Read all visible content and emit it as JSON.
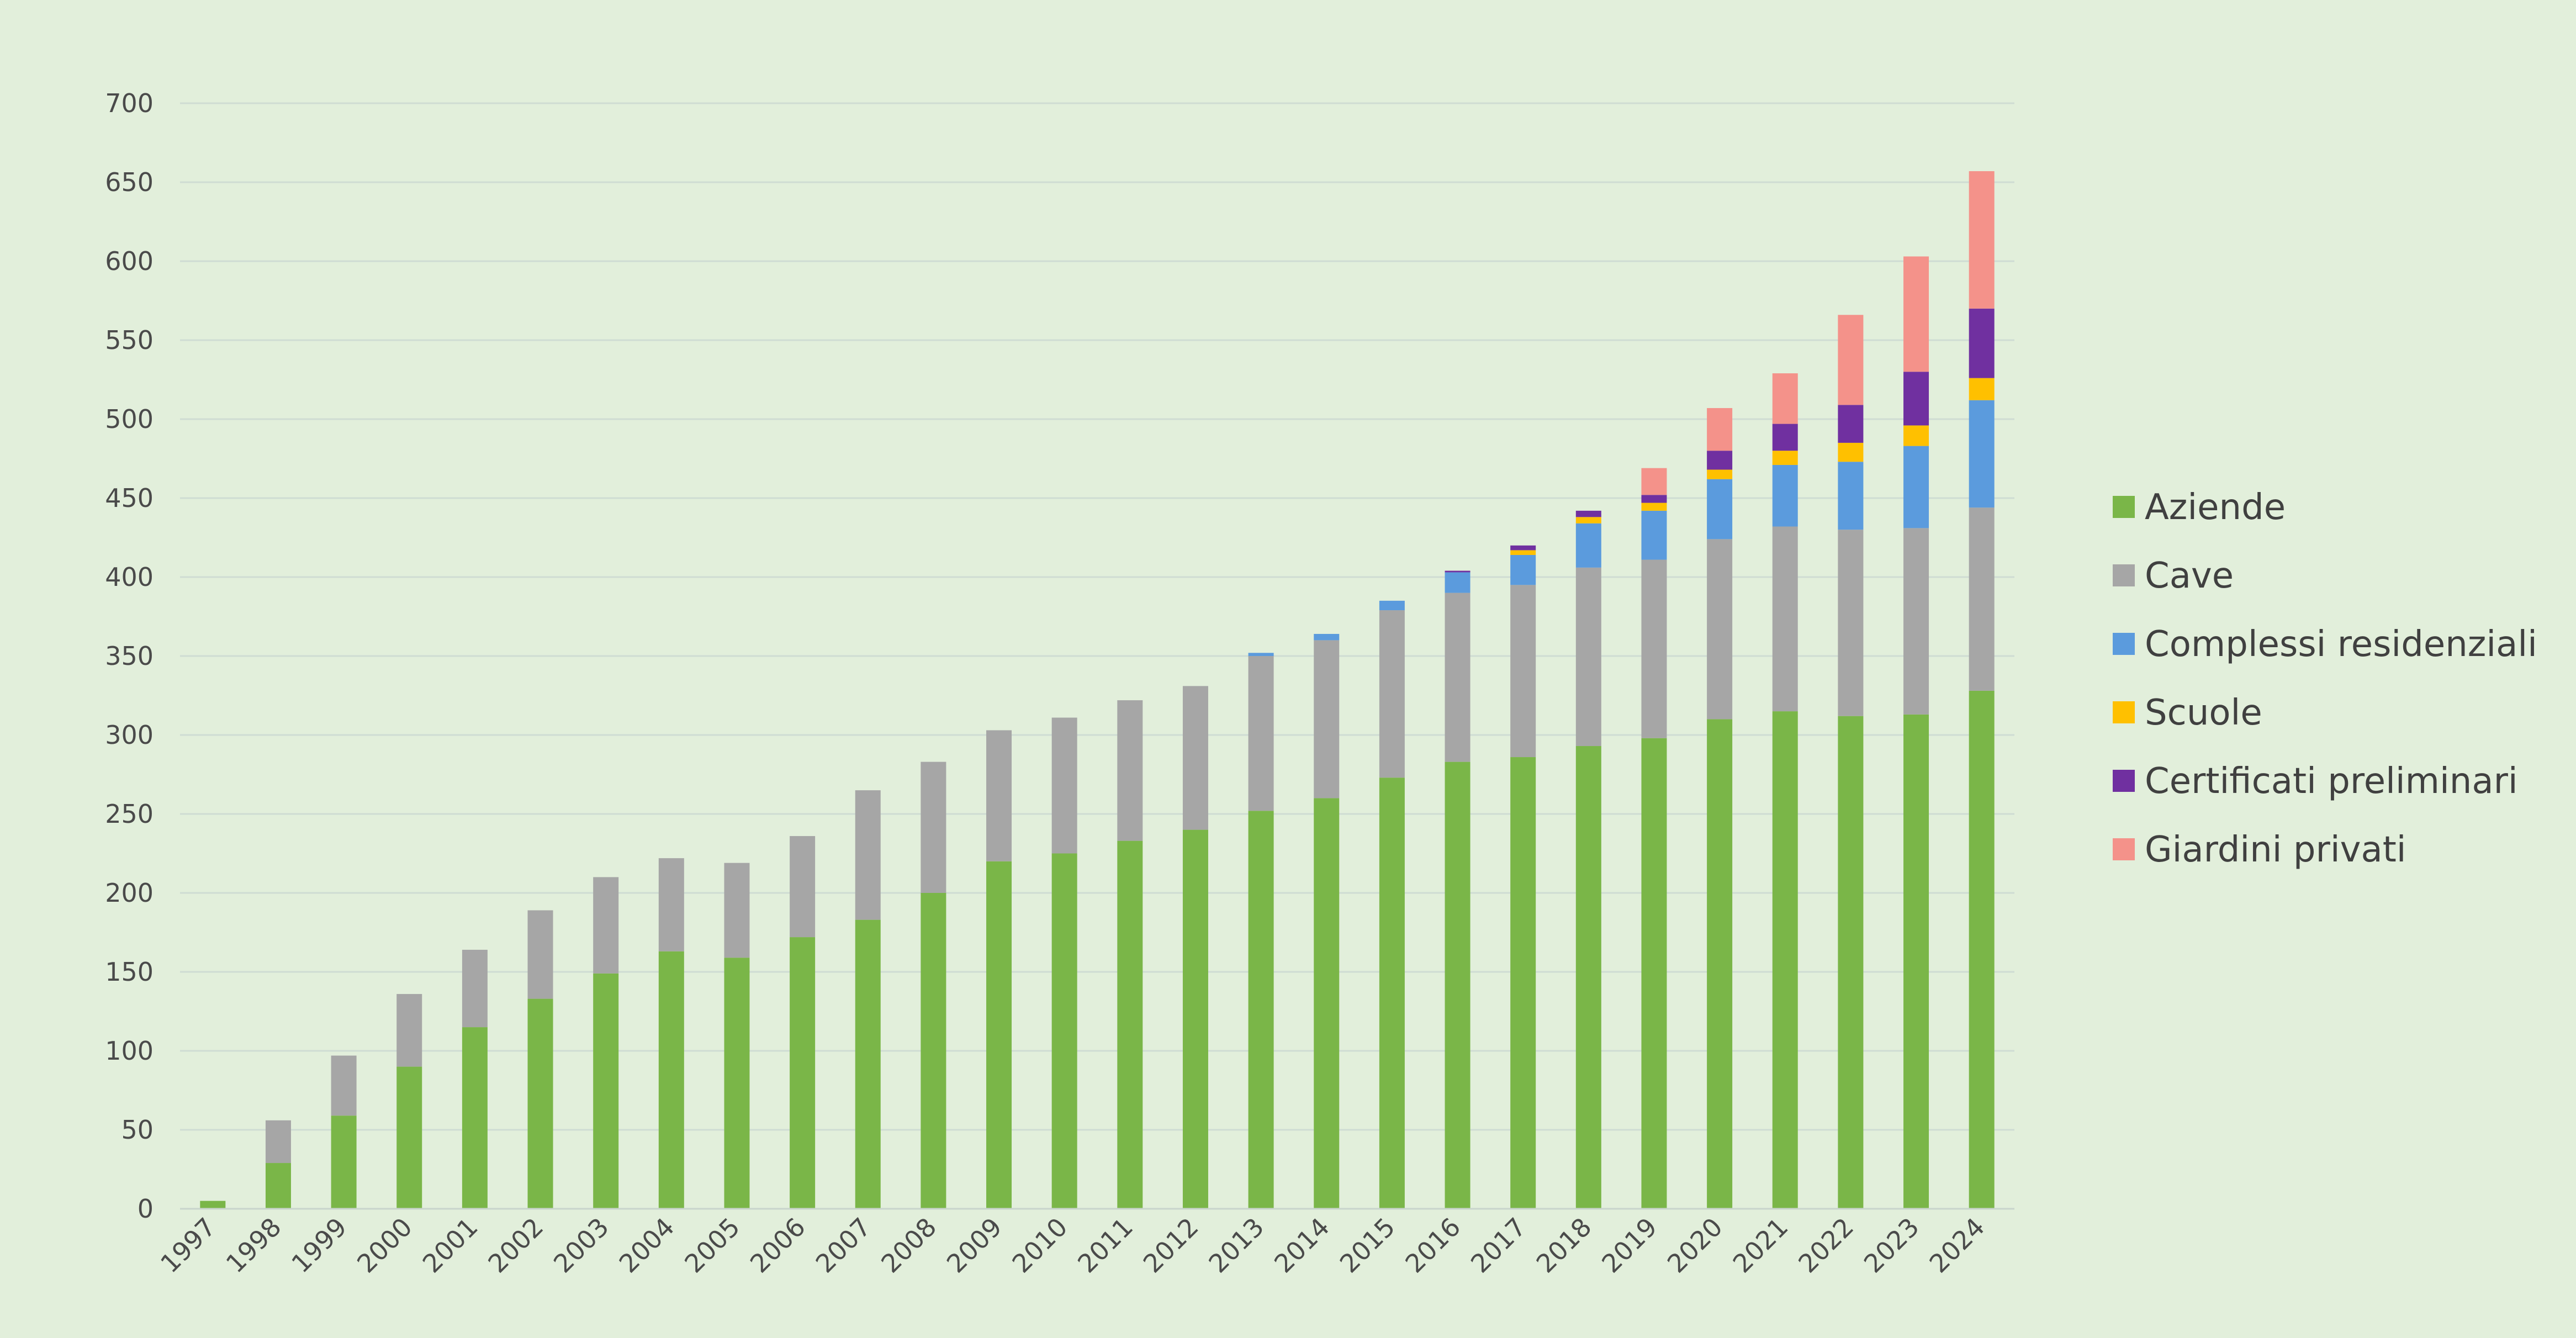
{
  "chart_data": {
    "type": "bar",
    "stacked": true,
    "title": "",
    "xlabel": "",
    "ylabel": "",
    "ylim": [
      0,
      700
    ],
    "yticks": [
      "0",
      "50",
      "100",
      "150",
      "200",
      "250",
      "300",
      "350",
      "400",
      "450",
      "500",
      "550",
      "600",
      "650",
      "700"
    ],
    "grid": true,
    "legend_position": "right",
    "categories": [
      "1997",
      "1998",
      "1999",
      "2000",
      "2001",
      "2002",
      "2003",
      "2004",
      "2005",
      "2006",
      "2007",
      "2008",
      "2009",
      "2010",
      "2011",
      "2012",
      "2013",
      "2014",
      "2015",
      "2016",
      "2017",
      "2018",
      "2019",
      "2020",
      "2021",
      "2022",
      "2023",
      "2024"
    ],
    "series": [
      {
        "name": "Aziende",
        "color": "#7ab648",
        "values": [
          5,
          29,
          59,
          90,
          115,
          133,
          149,
          163,
          159,
          172,
          183,
          200,
          220,
          225,
          233,
          240,
          252,
          260,
          273,
          283,
          286,
          293,
          298,
          310,
          315,
          312,
          313,
          328
        ]
      },
      {
        "name": "Cave",
        "color": "#a6a6a6",
        "values": [
          0,
          27,
          38,
          46,
          49,
          56,
          61,
          59,
          60,
          64,
          82,
          83,
          83,
          86,
          89,
          91,
          98,
          100,
          106,
          107,
          109,
          113,
          113,
          114,
          117,
          118,
          118,
          116
        ]
      },
      {
        "name": "Complessi residenziali",
        "color": "#5b9bdd",
        "values": [
          0,
          0,
          0,
          0,
          0,
          0,
          0,
          0,
          0,
          0,
          0,
          0,
          0,
          0,
          0,
          0,
          2,
          4,
          6,
          13,
          19,
          28,
          31,
          38,
          39,
          43,
          52,
          68
        ]
      },
      {
        "name": "Scuole",
        "color": "#ffc000",
        "values": [
          0,
          0,
          0,
          0,
          0,
          0,
          0,
          0,
          0,
          0,
          0,
          0,
          0,
          0,
          0,
          0,
          0,
          0,
          0,
          0,
          3,
          4,
          5,
          6,
          9,
          12,
          13,
          14
        ]
      },
      {
        "name": "Certificati preliminari",
        "color": "#7030a0",
        "values": [
          0,
          0,
          0,
          0,
          0,
          0,
          0,
          0,
          0,
          0,
          0,
          0,
          0,
          0,
          0,
          0,
          0,
          0,
          0,
          1,
          3,
          4,
          5,
          12,
          17,
          24,
          34,
          44
        ]
      },
      {
        "name": "Giardini privati",
        "color": "#f4928a",
        "values": [
          0,
          0,
          0,
          0,
          0,
          0,
          0,
          0,
          0,
          0,
          0,
          0,
          0,
          0,
          0,
          0,
          0,
          0,
          0,
          0,
          0,
          0,
          17,
          27,
          32,
          57,
          73,
          87
        ]
      }
    ]
  }
}
